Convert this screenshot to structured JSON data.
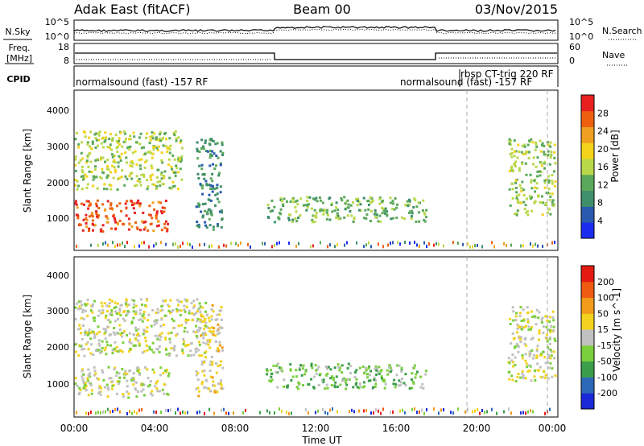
{
  "header": {
    "site": "Adak East (fitACF)",
    "beam": "Beam 00",
    "date": "03/Nov/2015"
  },
  "panels": {
    "nsky": {
      "left_label": "N.Sky",
      "right_label": "N.Search",
      "left_ticks": [
        "10^5",
        "10^0"
      ],
      "right_ticks": [
        "10^5",
        "10^0"
      ]
    },
    "freq": {
      "left_label_lines": [
        "Freq.",
        "[MHz]"
      ],
      "right_label": "Nave",
      "left_ticks": [
        "18",
        "8"
      ],
      "right_ticks": [
        "60",
        "0"
      ]
    },
    "cpid": {
      "label": "CPID",
      "segments": [
        {
          "text": "normalsound (fast) -157 RF"
        },
        {
          "text": "normalsound (fast) -157 RF"
        },
        {
          "text": "rbsp CT-trig 220 RF"
        }
      ]
    }
  },
  "colors": {
    "power_scale": [
      "#1b2cf0",
      "#2a5ab0",
      "#3f8f6a",
      "#5aa85a",
      "#b8d84a",
      "#f3d21a",
      "#f0a020",
      "#ee6010",
      "#e82020"
    ],
    "velocity_scale": [
      "#1a28d8",
      "#2c6ab8",
      "#3a9e4a",
      "#7acf3c",
      "#c0c0c0",
      "#f2d21e",
      "#f29a1a",
      "#ee5a10",
      "#e41a12"
    ]
  },
  "chart_data": [
    {
      "type": "heatmap",
      "name": "power",
      "ylabel": "Slant Range [km]",
      "yticks": [
        "4000",
        "3000",
        "2000",
        "1000"
      ],
      "ylim": [
        200,
        4600
      ],
      "xlim": [
        "00:00",
        "24:00"
      ],
      "colorbar_label": "Power [dB]",
      "colorbar_ticks": [
        "28",
        "24",
        "20",
        "16",
        "12",
        "8",
        "4"
      ],
      "colorbar_range": [
        0,
        30
      ],
      "echo_regions": [
        {
          "start": "00:00",
          "end": "04:40",
          "range": [
            750,
            1600
          ],
          "value": 26
        },
        {
          "start": "00:00",
          "end": "05:20",
          "range": [
            1900,
            3500
          ],
          "value": 15
        },
        {
          "start": "06:00",
          "end": "07:20",
          "range": [
            800,
            3300
          ],
          "value": 8
        },
        {
          "start": "09:30",
          "end": "17:30",
          "range": [
            1000,
            1700
          ],
          "value": 12
        },
        {
          "start": "21:30",
          "end": "23:50",
          "range": [
            1200,
            3300
          ],
          "value": 14
        }
      ]
    },
    {
      "type": "heatmap",
      "name": "velocity",
      "ylabel": "Slant Range [km]",
      "yticks": [
        "4000",
        "3000",
        "2000",
        "1000"
      ],
      "ylim": [
        200,
        4600
      ],
      "xlim": [
        "00:00",
        "24:00"
      ],
      "xticks": [
        "00:00",
        "04:00",
        "08:00",
        "12:00",
        "16:00",
        "20:00",
        "00:00"
      ],
      "xlabel": "Time UT",
      "colorbar_label": "Velocity [m s^-1]",
      "colorbar_ticks": [
        "200",
        "100",
        "50",
        "15",
        "-15",
        "-50",
        "-100",
        "-200"
      ],
      "colorbar_range": [
        -250,
        250
      ],
      "echo_regions": [
        {
          "start": "00:00",
          "end": "04:40",
          "range": [
            750,
            1600
          ],
          "value": 0
        },
        {
          "start": "00:00",
          "end": "06:30",
          "range": [
            1900,
            3500
          ],
          "value": 0
        },
        {
          "start": "06:00",
          "end": "07:20",
          "range": [
            800,
            3300
          ],
          "value": 40
        },
        {
          "start": "09:30",
          "end": "17:30",
          "range": [
            1000,
            1700
          ],
          "value": -60
        },
        {
          "start": "21:30",
          "end": "23:50",
          "range": [
            1200,
            3300
          ],
          "value": 0
        }
      ]
    }
  ]
}
